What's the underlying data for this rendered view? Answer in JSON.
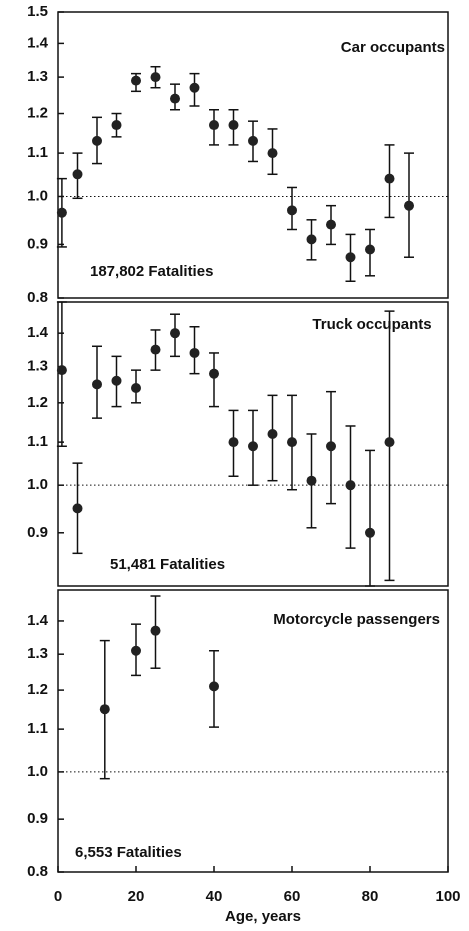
{
  "chart_data": [
    {
      "type": "scatter",
      "title": "Car occupants",
      "annotation": "187,802 Fatalities",
      "x": [
        1,
        5,
        10,
        15,
        20,
        25,
        30,
        35,
        40,
        45,
        50,
        55,
        60,
        65,
        70,
        75,
        80,
        85,
        90
      ],
      "values": [
        0.965,
        1.05,
        1.13,
        1.17,
        1.29,
        1.3,
        1.24,
        1.27,
        1.17,
        1.17,
        1.13,
        1.1,
        0.97,
        0.91,
        0.94,
        0.875,
        0.89,
        1.04,
        0.98
      ],
      "lower": [
        0.895,
        0.996,
        1.075,
        1.14,
        1.26,
        1.27,
        1.21,
        1.22,
        1.12,
        1.12,
        1.08,
        1.05,
        0.93,
        0.87,
        0.9,
        0.83,
        0.84,
        0.955,
        0.875
      ],
      "upper": [
        1.04,
        1.1,
        1.19,
        1.2,
        1.31,
        1.33,
        1.28,
        1.31,
        1.21,
        1.21,
        1.18,
        1.16,
        1.02,
        0.95,
        0.98,
        0.92,
        0.93,
        1.12,
        1.1
      ],
      "xlim": [
        0,
        100
      ],
      "ylim": [
        0.8,
        1.5
      ],
      "log_y": true,
      "reference": 1.0,
      "yticks": [
        {
          "value": 0.8,
          "label": "0.8"
        },
        {
          "value": 0.9,
          "label": "0.9"
        },
        {
          "value": 1.0,
          "label": "1.0"
        },
        {
          "value": 1.1,
          "label": "1.1"
        },
        {
          "value": 1.2,
          "label": "1.2"
        },
        {
          "value": 1.3,
          "label": "1.3"
        },
        {
          "value": 1.4,
          "label": "1.4"
        },
        {
          "value": 1.5,
          "label": "1.5"
        }
      ]
    },
    {
      "type": "scatter",
      "title": "Truck occupants",
      "annotation": "51,481 Fatalities",
      "x": [
        1,
        5,
        10,
        15,
        20,
        25,
        30,
        35,
        40,
        45,
        50,
        55,
        60,
        65,
        70,
        75,
        80,
        85
      ],
      "values": [
        1.29,
        0.95,
        1.25,
        1.26,
        1.24,
        1.35,
        1.4,
        1.34,
        1.28,
        1.1,
        1.09,
        1.12,
        1.1,
        1.01,
        1.09,
        1.0,
        0.9,
        1.1
      ],
      "lower": [
        1.09,
        0.86,
        1.16,
        1.19,
        1.2,
        1.29,
        1.33,
        1.28,
        1.19,
        1.02,
        1.0,
        1.01,
        0.99,
        0.91,
        0.96,
        0.87,
        0.8,
        0.81
      ],
      "upper": [
        1.5,
        1.05,
        1.36,
        1.33,
        1.29,
        1.41,
        1.46,
        1.42,
        1.34,
        1.18,
        1.18,
        1.22,
        1.22,
        1.12,
        1.23,
        1.14,
        1.08,
        1.47
      ],
      "xlim": [
        0,
        100
      ],
      "ylim": [
        0.8,
        1.5
      ],
      "log_y": true,
      "reference": 1.0,
      "yticks": [
        {
          "value": 0.9,
          "label": "0.9"
        },
        {
          "value": 1.0,
          "label": "1.0"
        },
        {
          "value": 1.1,
          "label": "1.1"
        },
        {
          "value": 1.2,
          "label": "1.2"
        },
        {
          "value": 1.3,
          "label": "1.3"
        },
        {
          "value": 1.4,
          "label": "1.4"
        }
      ]
    },
    {
      "type": "scatter",
      "title": "Motorcycle passengers",
      "annotation": "6,553 Fatalities",
      "x": [
        12,
        20,
        25,
        40
      ],
      "values": [
        1.15,
        1.31,
        1.37,
        1.21
      ],
      "lower": [
        0.985,
        1.24,
        1.26,
        1.105
      ],
      "upper": [
        1.34,
        1.39,
        1.48,
        1.31
      ],
      "xlim": [
        0,
        100
      ],
      "ylim": [
        0.8,
        1.5
      ],
      "log_y": true,
      "reference": 1.0,
      "yticks": [
        {
          "value": 0.8,
          "label": "0.8"
        },
        {
          "value": 0.9,
          "label": "0.9"
        },
        {
          "value": 1.0,
          "label": "1.0"
        },
        {
          "value": 1.1,
          "label": "1.1"
        },
        {
          "value": 1.2,
          "label": "1.2"
        },
        {
          "value": 1.3,
          "label": "1.3"
        },
        {
          "value": 1.4,
          "label": "1.4"
        }
      ],
      "xlabel": "Age, years",
      "xticks": [
        0,
        20,
        40,
        60,
        80,
        100
      ]
    }
  ]
}
